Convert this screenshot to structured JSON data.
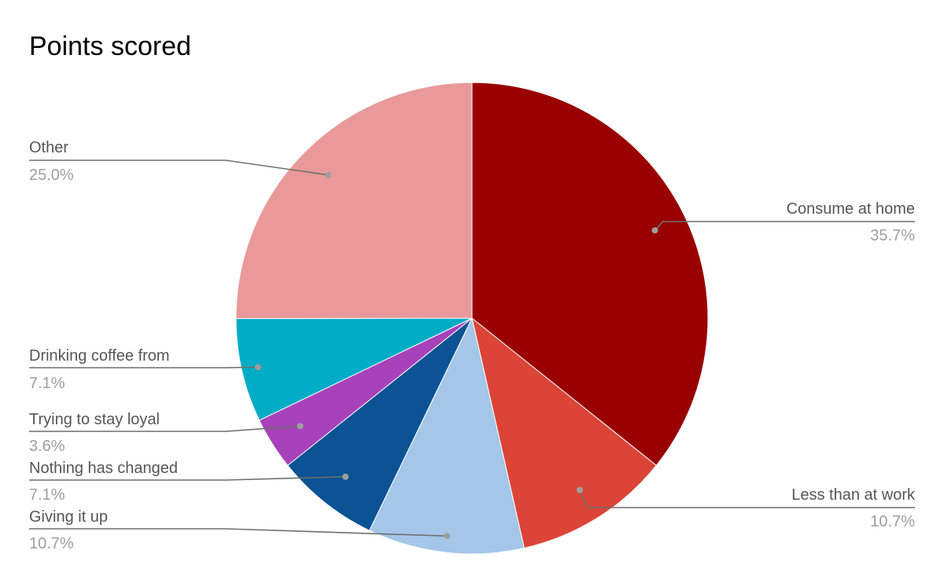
{
  "chart_data": {
    "type": "pie",
    "title": "Points scored",
    "slices": [
      {
        "label": "Consume at home",
        "value": 35.7,
        "percent_label": "35.7%",
        "color": "#990000"
      },
      {
        "label": "Less than at work",
        "value": 10.7,
        "percent_label": "10.7%",
        "color": "#db4437"
      },
      {
        "label": "Giving it up",
        "value": 10.7,
        "percent_label": "10.7%",
        "color": "#a4c6e8"
      },
      {
        "label": "Nothing has changed",
        "value": 7.1,
        "percent_label": "7.1%",
        "color": "#0b5394"
      },
      {
        "label": "Trying to stay loyal",
        "value": 3.6,
        "percent_label": "3.6%",
        "color": "#a742bb"
      },
      {
        "label": "Drinking coffee from",
        "value": 7.1,
        "percent_label": "7.1%",
        "color": "#00acc6"
      },
      {
        "label": "Other",
        "value": 25.0,
        "percent_label": "25.0%",
        "color": "#e99999"
      }
    ],
    "start_angle": "12 o'clock",
    "direction": "clockwise",
    "legend": "none (labels with leader lines)"
  }
}
